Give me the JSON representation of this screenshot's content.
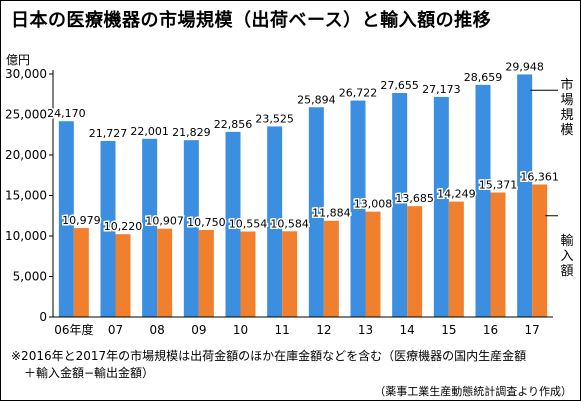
{
  "title": "日本の医療機器の市場規模（出荷ベース）と輸入額の推移",
  "note_line1": "※2016年と2017年の市場規模は出荷金額のほか在庫金額などを含む（医療機器の国内生産金額",
  "note_line2": "＋輸入金額−輸出金額）",
  "source": "（薬事工業生産動態統計調査より作成）",
  "legend": {
    "market": [
      "市",
      "場",
      "規",
      "模"
    ],
    "import": [
      "輸",
      "入",
      "額"
    ]
  },
  "colors": {
    "market": "#3b8ee0",
    "import": "#f07f2e"
  },
  "chart_data": {
    "type": "bar",
    "unit_label": "億円",
    "categories": [
      "06年度",
      "07",
      "08",
      "09",
      "10",
      "11",
      "12",
      "13",
      "14",
      "15",
      "16",
      "17"
    ],
    "series": [
      {
        "name": "市場規模",
        "values": [
          24170,
          21727,
          22001,
          21829,
          22856,
          23525,
          25894,
          26722,
          27655,
          27173,
          28659,
          29948
        ]
      },
      {
        "name": "輸入額",
        "values": [
          10979,
          10220,
          10907,
          10750,
          10554,
          10584,
          11884,
          13008,
          13685,
          14249,
          15371,
          16361
        ]
      }
    ],
    "ylim": [
      0,
      30000
    ],
    "yticks": [
      0,
      5000,
      10000,
      15000,
      20000,
      25000,
      30000
    ],
    "grid": false,
    "legend_position": "right"
  }
}
